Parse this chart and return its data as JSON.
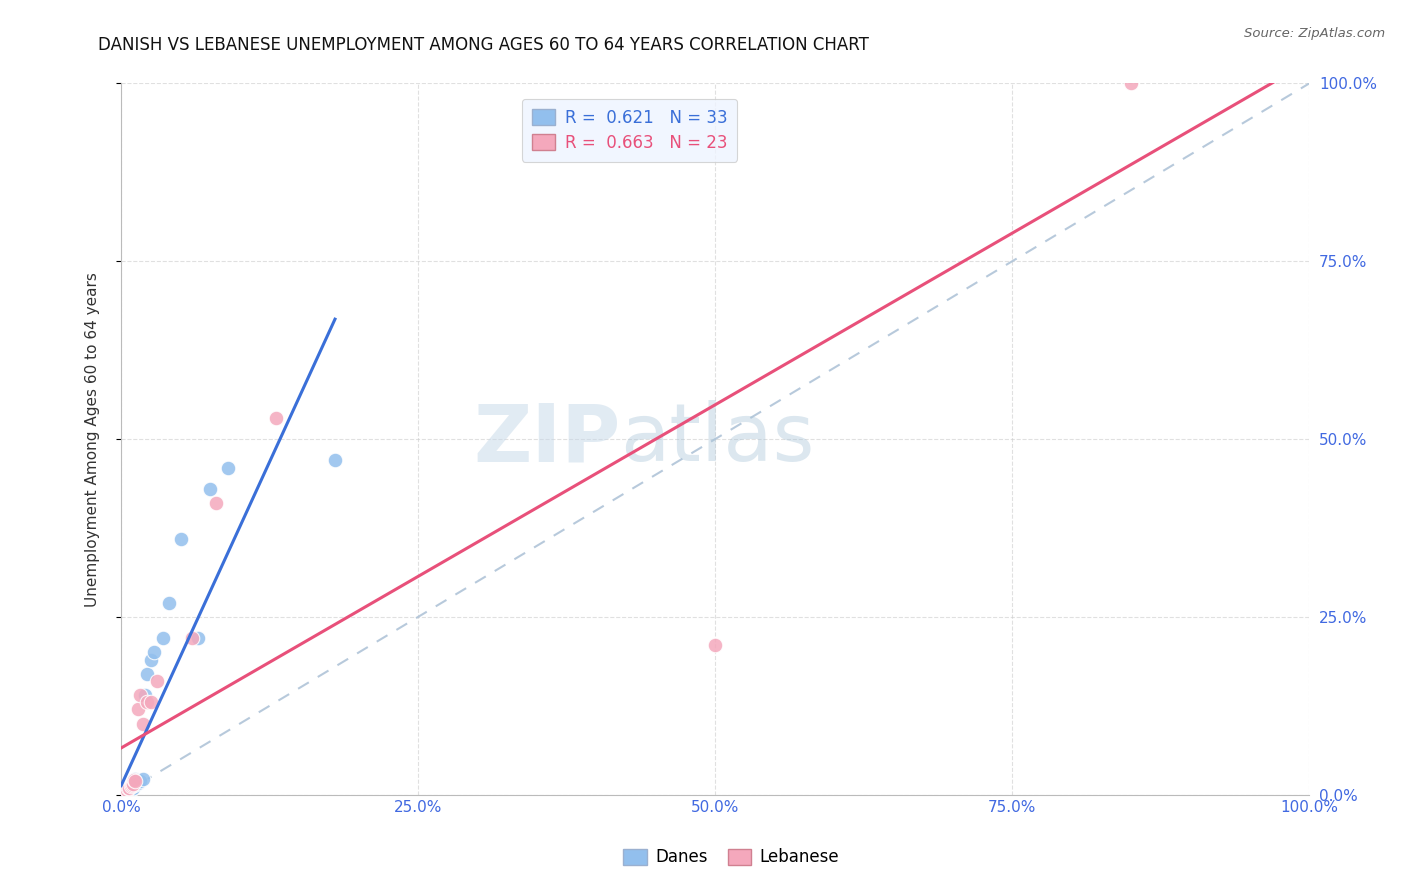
{
  "title": "DANISH VS LEBANESE UNEMPLOYMENT AMONG AGES 60 TO 64 YEARS CORRELATION CHART",
  "source": "Source: ZipAtlas.com",
  "ylabel": "Unemployment Among Ages 60 to 64 years",
  "xlim": [
    0,
    1.0
  ],
  "ylim": [
    0,
    1.0
  ],
  "xtick_vals": [
    0.0,
    0.25,
    0.5,
    0.75,
    1.0
  ],
  "xtick_labels": [
    "0.0%",
    "25.0%",
    "50.0%",
    "75.0%",
    "100.0%"
  ],
  "ytick_vals": [
    0.0,
    0.25,
    0.5,
    0.75,
    1.0
  ],
  "ytick_labels_right": [
    "0.0%",
    "25.0%",
    "50.0%",
    "75.0%",
    "100.0%"
  ],
  "danes_color": "#92bfed",
  "lebanese_color": "#f4a8bc",
  "danes_line_color": "#3a6fd8",
  "lebanese_line_color": "#e8507a",
  "danes_R": 0.621,
  "danes_N": 33,
  "lebanese_R": 0.663,
  "lebanese_N": 23,
  "danes_x": [
    0.001,
    0.001,
    0.002,
    0.003,
    0.003,
    0.004,
    0.005,
    0.005,
    0.006,
    0.006,
    0.007,
    0.008,
    0.009,
    0.009,
    0.01,
    0.011,
    0.012,
    0.012,
    0.013,
    0.014,
    0.016,
    0.018,
    0.02,
    0.022,
    0.025,
    0.028,
    0.035,
    0.04,
    0.05,
    0.065,
    0.075,
    0.09,
    0.18
  ],
  "danes_y": [
    0.002,
    0.003,
    0.003,
    0.004,
    0.005,
    0.004,
    0.005,
    0.007,
    0.006,
    0.008,
    0.007,
    0.009,
    0.008,
    0.012,
    0.01,
    0.013,
    0.018,
    0.022,
    0.02,
    0.016,
    0.019,
    0.022,
    0.14,
    0.17,
    0.19,
    0.2,
    0.22,
    0.27,
    0.36,
    0.22,
    0.43,
    0.46,
    0.47
  ],
  "lebanese_x": [
    0.001,
    0.002,
    0.003,
    0.004,
    0.005,
    0.006,
    0.007,
    0.008,
    0.009,
    0.01,
    0.011,
    0.012,
    0.014,
    0.016,
    0.018,
    0.022,
    0.025,
    0.03,
    0.06,
    0.08,
    0.13,
    0.5,
    0.85
  ],
  "lebanese_y": [
    0.002,
    0.003,
    0.004,
    0.005,
    0.007,
    0.01,
    0.009,
    0.012,
    0.014,
    0.015,
    0.02,
    0.019,
    0.12,
    0.14,
    0.1,
    0.13,
    0.13,
    0.16,
    0.22,
    0.41,
    0.53,
    0.21,
    1.0
  ],
  "background_color": "#ffffff",
  "grid_color": "#cccccc",
  "ref_line_color": "#b0c4d8",
  "watermark_color": "#dce8f0",
  "legend_bg": "#eef4ff"
}
